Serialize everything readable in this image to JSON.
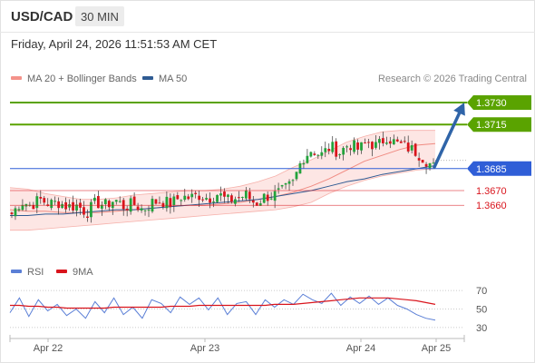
{
  "header": {
    "symbol": "USD/CAD",
    "timeframe": "30 MIN"
  },
  "timestamp": "Friday, April 24, 2026 11:51:53 AM CET",
  "legend": {
    "items": [
      {
        "label": "MA 20 + Bollinger Bands",
        "color": "#f4928a"
      },
      {
        "label": "MA 50",
        "color": "#2f5b93"
      }
    ],
    "credit": "Research © 2026 Trading Central"
  },
  "colors": {
    "resistance": "#5aa300",
    "pivot": "#2f5ed7",
    "support": "#d9141c",
    "arrow": "#2f64a8",
    "candle_up": "#22a33b",
    "candle_down": "#d9141c",
    "band_fill": "#fde3e1"
  },
  "chart_data": [
    {
      "type": "line",
      "title": "",
      "xlabel": "",
      "ylabel": "",
      "x_ticks": [
        "Apr 22",
        "Apr 23",
        "Apr 24",
        "Apr 25"
      ],
      "ylim": [
        1.3628,
        1.3738
      ],
      "levels": [
        {
          "value": 1.373,
          "label": "1.3730",
          "kind": "resistance"
        },
        {
          "value": 1.3715,
          "label": "1.3715",
          "kind": "resistance"
        },
        {
          "value": 1.3685,
          "label": "1.3685",
          "kind": "pivot"
        },
        {
          "value": 1.367,
          "label": "1.3670",
          "kind": "support"
        },
        {
          "value": 1.366,
          "label": "1.3660",
          "kind": "support"
        }
      ],
      "series": [
        {
          "name": "MA 20 + Bollinger Bands",
          "values": [
            1.3657,
            1.3656,
            1.3656,
            1.3655,
            1.3655,
            1.3655,
            1.3656,
            1.3657,
            1.3658,
            1.3659,
            1.366,
            1.366,
            1.3661,
            1.3662,
            1.3664,
            1.3666,
            1.3669,
            1.3673,
            1.3678,
            1.3684,
            1.369,
            1.3694,
            1.3698,
            1.3701,
            1.3702
          ]
        },
        {
          "name": "MA 50",
          "values": [
            1.3653,
            1.3653,
            1.3654,
            1.3654,
            1.3655,
            1.3656,
            1.3657,
            1.3657,
            1.3658,
            1.3659,
            1.366,
            1.3661,
            1.3662,
            1.3663,
            1.3664,
            1.3666,
            1.3668,
            1.367,
            1.3673,
            1.3676,
            1.3678,
            1.3681,
            1.3683,
            1.3685,
            1.3687
          ]
        }
      ],
      "bollinger_upper": [
        1.3672,
        1.3671,
        1.3668,
        1.3666,
        1.3664,
        1.3664,
        1.3665,
        1.3667,
        1.3668,
        1.3669,
        1.367,
        1.367,
        1.3671,
        1.3673,
        1.3676,
        1.368,
        1.3686,
        1.3691,
        1.3697,
        1.3703,
        1.3707,
        1.371,
        1.3711,
        1.3711,
        1.3711
      ],
      "bollinger_lower": [
        1.3643,
        1.3643,
        1.3644,
        1.3645,
        1.3646,
        1.3647,
        1.3648,
        1.3649,
        1.365,
        1.3651,
        1.3652,
        1.3653,
        1.3654,
        1.3655,
        1.3656,
        1.3657,
        1.3659,
        1.3662,
        1.3668,
        1.3673,
        1.3677,
        1.368,
        1.3682,
        1.3684,
        1.3685
      ],
      "price_path": [
        1.3654,
        1.3663,
        1.366,
        1.3664,
        1.3661,
        1.3662,
        1.3659,
        1.366,
        1.3655,
        1.3662,
        1.366,
        1.3664,
        1.3659,
        1.3661,
        1.3657,
        1.3662,
        1.3663,
        1.3661,
        1.3666,
        1.3665,
        1.3667,
        1.3665,
        1.3668,
        1.3663,
        1.3665,
        1.3667,
        1.3661,
        1.3666,
        1.3667,
        1.367,
        1.3675,
        1.3692,
        1.3698,
        1.3694,
        1.37,
        1.3696,
        1.3702,
        1.3698,
        1.3703,
        1.37,
        1.3707,
        1.3702,
        1.37,
        1.3697,
        1.3692,
        1.3686
      ],
      "forecast": {
        "from": 1.3686,
        "to": 1.373
      }
    },
    {
      "type": "line",
      "title": "",
      "legend": [
        "RSI",
        "9MA"
      ],
      "series_colors": [
        "#5b7fd6",
        "#d9141c"
      ],
      "ylim": [
        25,
        78
      ],
      "y_ticks": [
        70,
        50,
        30
      ],
      "series": [
        {
          "name": "RSI",
          "values": [
            46,
            62,
            42,
            60,
            48,
            55,
            43,
            50,
            40,
            58,
            46,
            62,
            44,
            52,
            40,
            60,
            56,
            46,
            63,
            55,
            62,
            49,
            62,
            44,
            56,
            58,
            44,
            60,
            52,
            60,
            55,
            66,
            60,
            56,
            67,
            54,
            63,
            56,
            64,
            55,
            62,
            54,
            50,
            44,
            40,
            38
          ]
        },
        {
          "name": "9MA",
          "values": [
            54,
            54,
            53,
            53,
            52,
            52,
            51,
            51,
            51,
            51,
            51,
            52,
            52,
            52,
            52,
            52,
            52,
            53,
            53,
            53,
            54,
            54,
            54,
            54,
            54,
            54,
            54,
            54,
            55,
            55,
            55,
            56,
            57,
            58,
            59,
            60,
            61,
            62,
            62,
            62,
            62,
            61,
            60,
            59,
            57,
            55
          ]
        }
      ]
    }
  ]
}
